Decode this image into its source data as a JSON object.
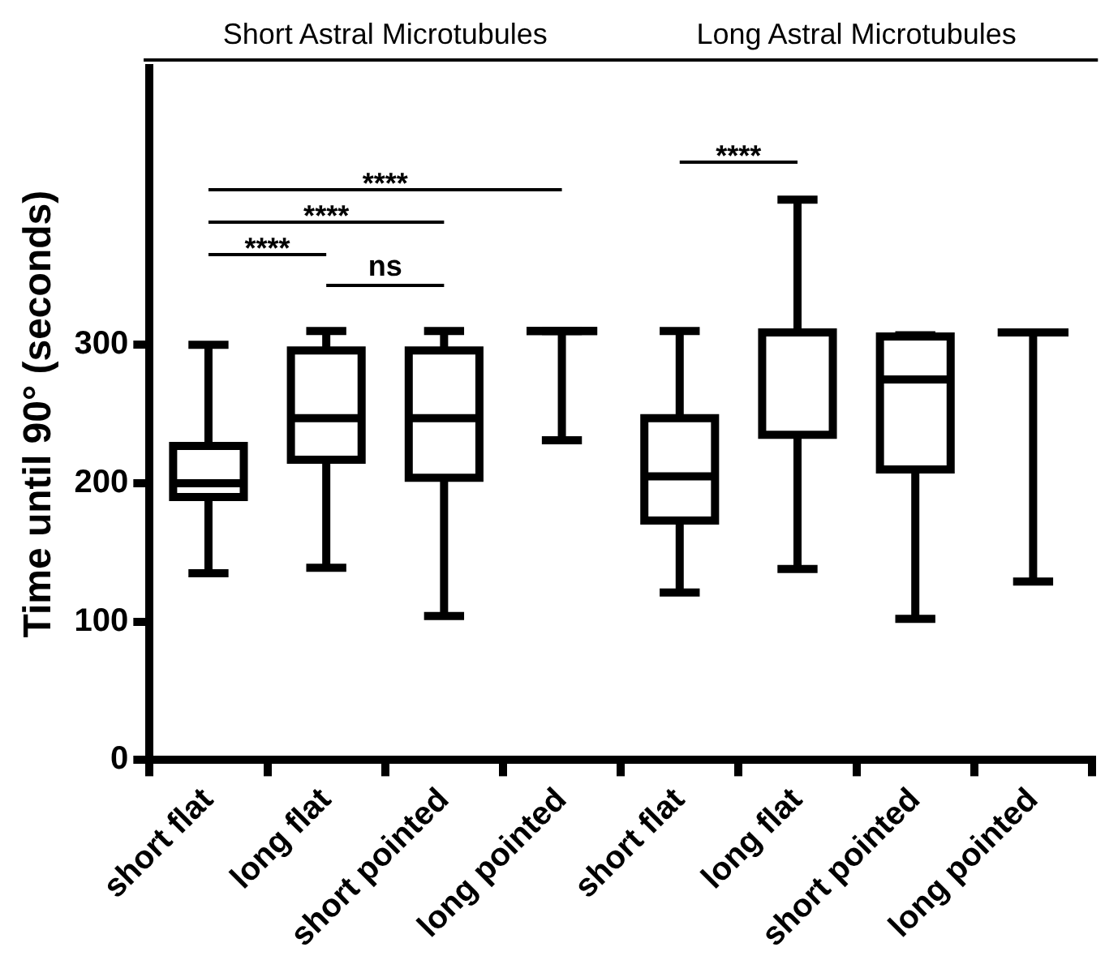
{
  "chart_data": {
    "type": "box",
    "ylabel": "Time until 90° (seconds)",
    "color": "#000000",
    "categories": [
      "short flat",
      "long flat",
      "short pointed",
      "long pointed",
      "short flat",
      "long flat",
      "short pointed",
      "long pointed"
    ],
    "boxes": [
      {
        "low": 135,
        "q1": 190,
        "median": 200,
        "q3": 227,
        "high": 300
      },
      {
        "low": 139,
        "q1": 217,
        "median": 247,
        "q3": 296,
        "high": 310
      },
      {
        "low": 104,
        "q1": 204,
        "median": 247,
        "q3": 296,
        "high": 310
      },
      {
        "low": 231,
        "q1": 310,
        "median": 310,
        "q3": 310,
        "high": 310
      },
      {
        "low": 121,
        "q1": 173,
        "median": 205,
        "q3": 247,
        "high": 310
      },
      {
        "low": 138,
        "q1": 235,
        "median": 309,
        "q3": 309,
        "high": 405
      },
      {
        "low": 102,
        "q1": 210,
        "median": 275,
        "q3": 306,
        "high": 307
      },
      {
        "low": 129,
        "q1": 309,
        "median": 309,
        "q3": 309,
        "high": 309
      }
    ],
    "ylim": [
      0,
      500
    ],
    "yticks": [
      0,
      100,
      200,
      300
    ],
    "grid": false,
    "legend": false,
    "annotations": [
      "Short Astral Microtubules",
      "Long Astral Microtubules",
      "****",
      "****",
      "****",
      "ns",
      "****"
    ]
  }
}
